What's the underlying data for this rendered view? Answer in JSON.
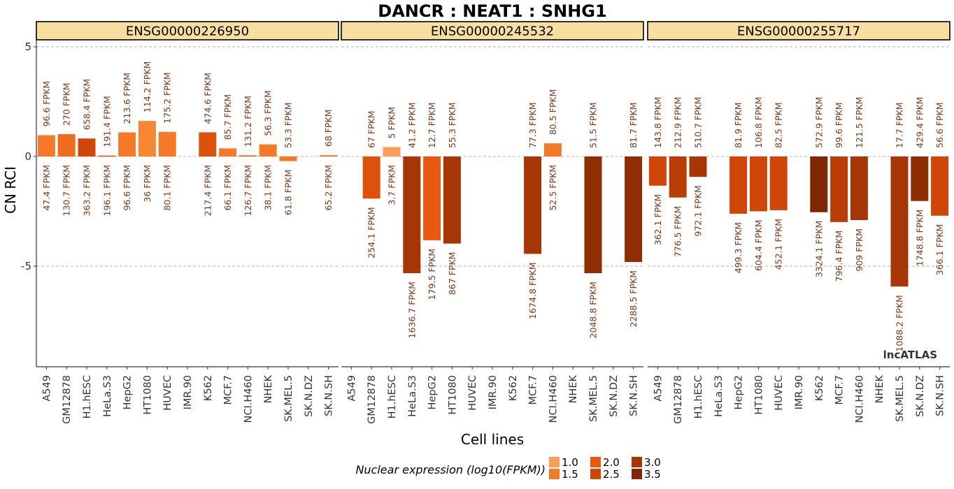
{
  "chart_data": {
    "type": "bar",
    "title": "DANCR : NEAT1 : SNHG1",
    "xlabel": "Cell lines",
    "ylabel": "CN RCI",
    "ylim": [
      -9.6,
      5.6
    ],
    "yticks": [
      5,
      0,
      -5
    ],
    "ytick_labels": [
      "5",
      "0",
      "-5"
    ],
    "grid": "dashed horizontal lines at y ticks",
    "categories": [
      "A549",
      "GM12878",
      "H1.hESC",
      "HeLa.S3",
      "HepG2",
      "HT1080",
      "HUVEC",
      "IMR.90",
      "K562",
      "MCF.7",
      "NCI.H460",
      "NHEK",
      "SK.MEL.5",
      "SK.N.DZ",
      "SK.N.SH"
    ],
    "watermark": "lncATLAS",
    "legend": {
      "title": "Nuclear expression (log10(FPKM))",
      "position": "bottom",
      "items": [
        {
          "label": "1.0",
          "color": "#fc9d5a"
        },
        {
          "label": "1.5",
          "color": "#f47a2a"
        },
        {
          "label": "2.0",
          "color": "#e85a12"
        },
        {
          "label": "2.5",
          "color": "#cf4608"
        },
        {
          "label": "3.0",
          "color": "#a63606"
        },
        {
          "label": "3.5",
          "color": "#7f2704"
        }
      ]
    },
    "panels": [
      {
        "strip": "ENSG00000226950",
        "bars": [
          {
            "cell": "A549",
            "value": 0.97,
            "top": "96.6 FPKM",
            "bottom": "47.4 FPKM",
            "color": "#f47a2a"
          },
          {
            "cell": "GM12878",
            "value": 1.02,
            "top": "270 FPKM",
            "bottom": "130.7 FPKM",
            "color": "#ed6c20"
          },
          {
            "cell": "H1.hESC",
            "value": 0.82,
            "top": "658.4 FPKM",
            "bottom": "363.2 FPKM",
            "color": "#cf4608"
          },
          {
            "cell": "HeLa.S3",
            "value": 0.04,
            "top": "191.4 FPKM",
            "bottom": "196.1 FPKM",
            "color": "#dc520d"
          },
          {
            "cell": "HepG2",
            "value": 1.1,
            "top": "213.6 FPKM",
            "bottom": "96.6 FPKM",
            "color": "#f47a2a"
          },
          {
            "cell": "HT1080",
            "value": 1.62,
            "top": "114.2 FPKM",
            "bottom": "36 FPKM",
            "color": "#f88733"
          },
          {
            "cell": "HUVEC",
            "value": 1.12,
            "top": "175.2 FPKM",
            "bottom": "80.1 FPKM",
            "color": "#f47a2a"
          },
          {
            "cell": "IMR.90",
            "value": null,
            "top": "",
            "bottom": "",
            "color": ""
          },
          {
            "cell": "K562",
            "value": 1.1,
            "top": "474.6 FPKM",
            "bottom": "217.4 FPKM",
            "color": "#dc520d"
          },
          {
            "cell": "MCF.7",
            "value": 0.37,
            "top": "85.7 FPKM",
            "bottom": "66.1 FPKM",
            "color": "#f47a2a"
          },
          {
            "cell": "NCI.H460",
            "value": 0.05,
            "top": "131.2 FPKM",
            "bottom": "126.7 FPKM",
            "color": "#e85a12"
          },
          {
            "cell": "NHEK",
            "value": 0.55,
            "top": "56.3 FPKM",
            "bottom": "38.1 FPKM",
            "color": "#f47a2a"
          },
          {
            "cell": "SK.MEL.5",
            "value": -0.21,
            "top": "53.3 FPKM",
            "bottom": "61.8 FPKM",
            "color": "#f47a2a"
          },
          {
            "cell": "SK.N.DZ",
            "value": null,
            "top": "",
            "bottom": "",
            "color": ""
          },
          {
            "cell": "SK.N.SH",
            "value": 0.06,
            "top": "68 FPKM",
            "bottom": "65.2 FPKM",
            "color": "#f47a2a"
          }
        ]
      },
      {
        "strip": "ENSG00000245532",
        "bars": [
          {
            "cell": "A549",
            "value": null,
            "top": "",
            "bottom": "",
            "color": ""
          },
          {
            "cell": "GM12878",
            "value": -1.92,
            "top": "67 FPKM",
            "bottom": "254.1 FPKM",
            "color": "#dc520d"
          },
          {
            "cell": "H1.hESC",
            "value": 0.43,
            "top": "5 FPKM",
            "bottom": "3.7 FPKM",
            "color": "#fc9d5a"
          },
          {
            "cell": "HeLa.S3",
            "value": -5.32,
            "top": "41.2 FPKM",
            "bottom": "1636.7 FPKM",
            "color": "#a63606"
          },
          {
            "cell": "HepG2",
            "value": -3.82,
            "top": "12.7 FPKM",
            "bottom": "179.5 FPKM",
            "color": "#e85a12"
          },
          {
            "cell": "HT1080",
            "value": -3.97,
            "top": "55.3 FPKM",
            "bottom": "867 FPKM",
            "color": "#a63606"
          },
          {
            "cell": "HUVEC",
            "value": null,
            "top": "",
            "bottom": "",
            "color": ""
          },
          {
            "cell": "IMR.90",
            "value": null,
            "top": "",
            "bottom": "",
            "color": ""
          },
          {
            "cell": "K562",
            "value": null,
            "top": "",
            "bottom": "",
            "color": ""
          },
          {
            "cell": "MCF.7",
            "value": -4.44,
            "top": "77.3 FPKM",
            "bottom": "1674.8 FPKM",
            "color": "#a63606"
          },
          {
            "cell": "NCI.H460",
            "value": 0.6,
            "top": "80.5 FPKM",
            "bottom": "52.5 FPKM",
            "color": "#f47a2a"
          },
          {
            "cell": "NHEK",
            "value": null,
            "top": "",
            "bottom": "",
            "color": ""
          },
          {
            "cell": "SK.MEL.5",
            "value": -5.32,
            "top": "51.5 FPKM",
            "bottom": "2048.8 FPKM",
            "color": "#8f2e05"
          },
          {
            "cell": "SK.N.DZ",
            "value": null,
            "top": "",
            "bottom": "",
            "color": ""
          },
          {
            "cell": "SK.N.SH",
            "value": -4.81,
            "top": "81.7 FPKM",
            "bottom": "2288.5 FPKM",
            "color": "#8f2e05"
          }
        ]
      },
      {
        "strip": "ENSG00000255717",
        "bars": [
          {
            "cell": "A549",
            "value": -1.33,
            "top": "143.8 FPKM",
            "bottom": "362.1 FPKM",
            "color": "#cf4608"
          },
          {
            "cell": "GM12878",
            "value": -1.87,
            "top": "212.9 FPKM",
            "bottom": "776.5 FPKM",
            "color": "#b93d07"
          },
          {
            "cell": "H1.hESC",
            "value": -0.93,
            "top": "510.7 FPKM",
            "bottom": "972.1 FPKM",
            "color": "#a63606"
          },
          {
            "cell": "HeLa.S3",
            "value": null,
            "top": "",
            "bottom": "",
            "color": ""
          },
          {
            "cell": "HepG2",
            "value": -2.61,
            "top": "81.9 FPKM",
            "bottom": "499.3 FPKM",
            "color": "#cf4608"
          },
          {
            "cell": "HT1080",
            "value": -2.5,
            "top": "106.8 FPKM",
            "bottom": "604.4 FPKM",
            "color": "#cf4608"
          },
          {
            "cell": "HUVEC",
            "value": -2.45,
            "top": "82.5 FPKM",
            "bottom": "452.1 FPKM",
            "color": "#cf4608"
          },
          {
            "cell": "IMR.90",
            "value": null,
            "top": "",
            "bottom": "",
            "color": ""
          },
          {
            "cell": "K562",
            "value": -2.54,
            "top": "572.9 FPKM",
            "bottom": "3324.1 FPKM",
            "color": "#7f2704"
          },
          {
            "cell": "MCF.7",
            "value": -2.99,
            "top": "99.6 FPKM",
            "bottom": "796.4 FPKM",
            "color": "#b93d07"
          },
          {
            "cell": "NCI.H460",
            "value": -2.9,
            "top": "121.5 FPKM",
            "bottom": "909 FPKM",
            "color": "#a63606"
          },
          {
            "cell": "NHEK",
            "value": null,
            "top": "",
            "bottom": "",
            "color": ""
          },
          {
            "cell": "SK.MEL.5",
            "value": -5.93,
            "top": "17.7 FPKM",
            "bottom": "1088.2 FPKM",
            "color": "#a63606"
          },
          {
            "cell": "SK.N.DZ",
            "value": -2.03,
            "top": "429.4 FPKM",
            "bottom": "1748.8 FPKM",
            "color": "#8f2e05"
          },
          {
            "cell": "SK.N.SH",
            "value": -2.7,
            "top": "56.6 FPKM",
            "bottom": "366.1 FPKM",
            "color": "#cf4608"
          }
        ]
      }
    ]
  }
}
